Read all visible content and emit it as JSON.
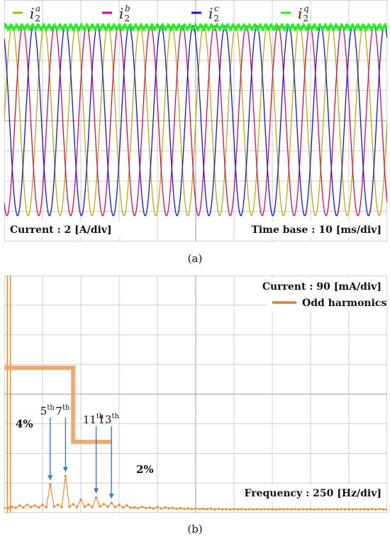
{
  "panels": {
    "a": {
      "caption": "(a)",
      "current_scale": "Current : 2 [A/div]",
      "time_scale": "Time base : 10 [ms/div]"
    },
    "b": {
      "caption": "(b)",
      "current_scale": "Current : 90 [mA/div]",
      "frequency_scale": "Frequency : 250 [Hz/div]",
      "legend_label": "Odd harmonics",
      "level_high": "4%",
      "level_low": "2%",
      "harmonics": [
        {
          "n": "5",
          "sup": "th"
        },
        {
          "n": "7",
          "sup": "th"
        },
        {
          "n": "11",
          "sup": "th"
        },
        {
          "n": "13",
          "sup": "th"
        }
      ]
    }
  },
  "chart_data": [
    {
      "type": "line",
      "panel": "a",
      "title": "",
      "xlabel": "",
      "ylabel": "",
      "x_unit": "ms",
      "y_unit": "A",
      "x_per_div": 10,
      "y_per_div": 2,
      "x_divisions": 10,
      "y_divisions": 8,
      "xlim": [
        0,
        100
      ],
      "ylim": [
        -8,
        8
      ],
      "grid": true,
      "legend_position": "top",
      "frequency_hz": 120,
      "series": [
        {
          "name": "i2a",
          "base": "i",
          "sup": "a",
          "sub": "2",
          "color": "#b5b000",
          "amplitude": 6.3,
          "phase_deg": 0
        },
        {
          "name": "i2b",
          "base": "i",
          "sup": "b",
          "sub": "2",
          "color": "#e0006e",
          "amplitude": 6.3,
          "phase_deg": -120
        },
        {
          "name": "i2c",
          "base": "i",
          "sup": "c",
          "sub": "2",
          "color": "#1010e6",
          "amplitude": 6.3,
          "phase_deg": 120
        },
        {
          "name": "i2q",
          "base": "i",
          "sup": "q",
          "sub": "2",
          "color": "#22ee22",
          "level": 6.2
        }
      ]
    },
    {
      "type": "line",
      "panel": "b",
      "title": "",
      "xlabel": "",
      "ylabel": "",
      "x_unit": "Hz",
      "y_unit": "mA",
      "x_per_div": 250,
      "y_per_div": 90,
      "x_divisions": 10,
      "y_divisions": 8,
      "xlim": [
        0,
        2500
      ],
      "ylim": [
        0,
        720
      ],
      "grid": true,
      "legend_position": "top-right",
      "series": [
        {
          "name": "Odd harmonics",
          "color": "#f08a30",
          "points": [
            [
              0,
              14
            ],
            [
              25,
              14
            ],
            [
              50,
              18
            ],
            [
              75,
              15
            ],
            [
              100,
              22
            ],
            [
              125,
              16
            ],
            [
              150,
              24
            ],
            [
              175,
              17
            ],
            [
              200,
              22
            ],
            [
              225,
              16
            ],
            [
              250,
              24
            ],
            [
              275,
              17
            ],
            [
              300,
              86
            ],
            [
              325,
              18
            ],
            [
              350,
              24
            ],
            [
              375,
              17
            ],
            [
              400,
              111
            ],
            [
              425,
              18
            ],
            [
              450,
              26
            ],
            [
              475,
              17
            ],
            [
              500,
              40
            ],
            [
              525,
              18
            ],
            [
              550,
              25
            ],
            [
              575,
              17
            ],
            [
              600,
              46
            ],
            [
              625,
              19
            ],
            [
              650,
              26
            ],
            [
              675,
              18
            ],
            [
              700,
              30
            ],
            [
              725,
              17
            ],
            [
              750,
              24
            ],
            [
              775,
              16
            ],
            [
              800,
              22
            ],
            [
              825,
              15
            ],
            [
              850,
              16
            ],
            [
              875,
              14
            ],
            [
              900,
              18
            ],
            [
              925,
              14
            ],
            [
              950,
              16
            ],
            [
              975,
              13
            ],
            [
              1000,
              17
            ],
            [
              1025,
              13
            ],
            [
              1050,
              16
            ],
            [
              1075,
              13
            ],
            [
              1100,
              15
            ],
            [
              1125,
              12
            ],
            [
              1150,
              14
            ],
            [
              1175,
              12
            ],
            [
              1200,
              13
            ],
            [
              1225,
              11
            ],
            [
              1250,
              13
            ],
            [
              1275,
              11
            ],
            [
              1300,
              12
            ],
            [
              1325,
              11
            ],
            [
              1350,
              12
            ],
            [
              1375,
              10
            ],
            [
              1400,
              12
            ],
            [
              1425,
              10
            ],
            [
              1450,
              11
            ],
            [
              1475,
              10
            ],
            [
              1500,
              11
            ],
            [
              1525,
              10
            ],
            [
              1550,
              11
            ],
            [
              1575,
              10
            ],
            [
              1600,
              11
            ],
            [
              1625,
              10
            ],
            [
              1650,
              11
            ],
            [
              1675,
              10
            ],
            [
              1700,
              11
            ],
            [
              1725,
              10
            ],
            [
              1750,
              11
            ],
            [
              1775,
              10
            ],
            [
              1800,
              11
            ],
            [
              1825,
              10
            ],
            [
              1850,
              11
            ],
            [
              1875,
              10
            ],
            [
              1900,
              11
            ],
            [
              1925,
              10
            ],
            [
              1950,
              11
            ],
            [
              1975,
              10
            ],
            [
              2000,
              11
            ],
            [
              2025,
              10
            ],
            [
              2050,
              11
            ],
            [
              2075,
              10
            ],
            [
              2100,
              11
            ],
            [
              2125,
              10
            ],
            [
              2150,
              11
            ],
            [
              2175,
              10
            ],
            [
              2200,
              11
            ],
            [
              2225,
              10
            ],
            [
              2250,
              11
            ],
            [
              2275,
              10
            ],
            [
              2300,
              11
            ],
            [
              2325,
              10
            ],
            [
              2350,
              11
            ],
            [
              2375,
              10
            ],
            [
              2400,
              11
            ],
            [
              2425,
              10
            ],
            [
              2450,
              11
            ],
            [
              2475,
              10
            ],
            [
              2500,
              10
            ]
          ]
        }
      ],
      "fundamental_marker_x": [
        20,
        40
      ],
      "limit_mask": {
        "high_level_mA": 440,
        "low_level_mA": 215,
        "step_x": 450,
        "start_x": 0,
        "end_x": 700
      },
      "annotations": [
        {
          "label": "5th",
          "x": 300,
          "y": 86
        },
        {
          "label": "7th",
          "x": 400,
          "y": 111
        },
        {
          "label": "11th",
          "x": 600,
          "y": 46
        },
        {
          "label": "13th",
          "x": 700,
          "y": 30
        }
      ]
    }
  ]
}
